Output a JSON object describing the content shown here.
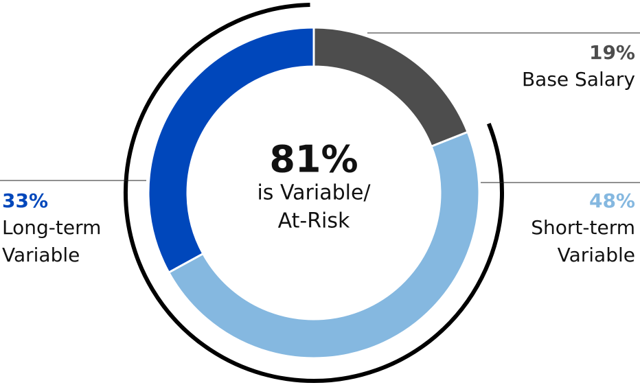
{
  "chart_data": {
    "type": "donut",
    "categories": [
      "Base Salary",
      "Short-term Variable",
      "Long-term Variable"
    ],
    "values": [
      19,
      48,
      33
    ],
    "value_labels": [
      "19%",
      "48%",
      "33%"
    ],
    "colors": [
      "#4d4d4d",
      "#85b8e0",
      "#0047bb"
    ],
    "center_title": "81%",
    "center_subtitle": [
      "is Variable/",
      "At-Risk"
    ]
  }
}
